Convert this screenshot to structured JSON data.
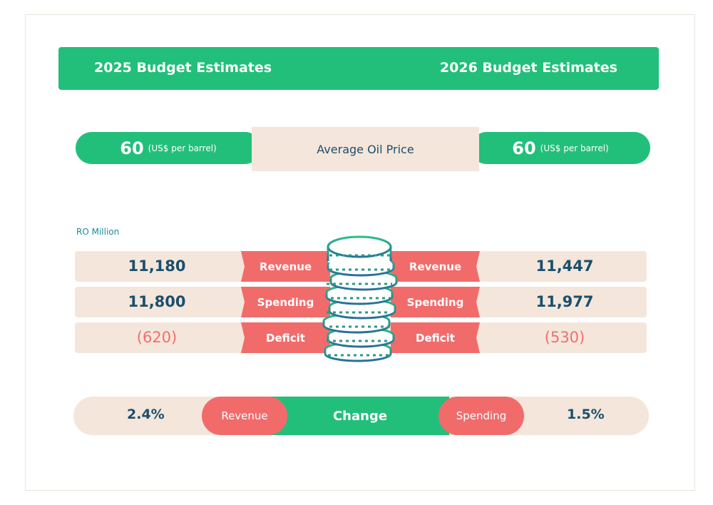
{
  "header": {
    "left": "2025 Budget Estimates",
    "right": "2026 Budget Estimates"
  },
  "oil": {
    "label": "Average Oil Price",
    "left_value": "60",
    "right_value": "60",
    "unit": "(US$ per barrel)"
  },
  "unit_label": "RO Million",
  "rows": [
    {
      "label": "Revenue",
      "v2025": "11,180",
      "v2026": "11,447"
    },
    {
      "label": "Spending",
      "v2025": "11,800",
      "v2026": "11,977"
    },
    {
      "label": "Deficit",
      "v2025": "(620)",
      "v2026": "(530)"
    }
  ],
  "change": {
    "label": "Change",
    "revenue_label": "Revenue",
    "revenue_value": "2.4%",
    "spending_label": "Spending",
    "spending_value": "1.5%"
  },
  "colors": {
    "green": "#22bf7a",
    "beige": "#f4e6da",
    "coral": "#f26b6b",
    "navy": "#1a4f6e"
  },
  "icon": "coin-stack-icon"
}
